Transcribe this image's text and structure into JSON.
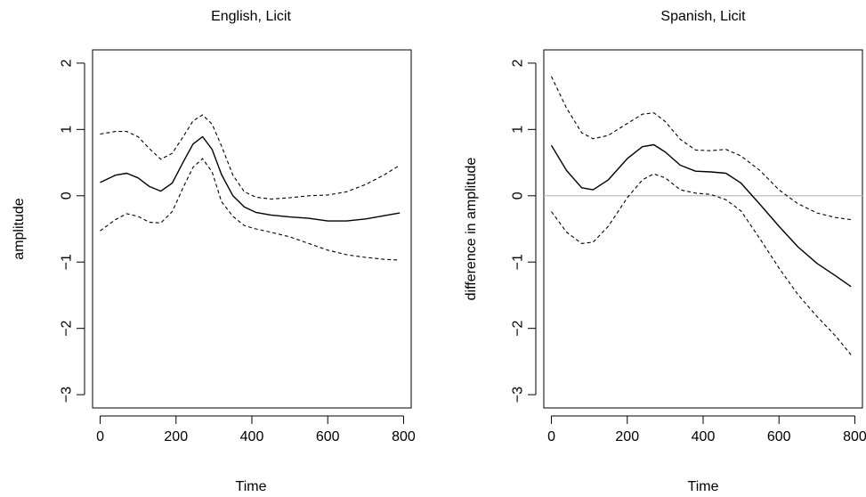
{
  "colors": {
    "fit": "#000000",
    "band": "#000000",
    "reference_line": "#bebebe",
    "background": "#ffffff"
  },
  "chart_data": [
    {
      "type": "line",
      "title": "English, Licit",
      "xlabel": "Time",
      "ylabel": "amplitude",
      "xlim": [
        -20,
        820
      ],
      "ylim": [
        -3.2,
        2.2
      ],
      "xticks": [
        0,
        200,
        400,
        600,
        800
      ],
      "xtick_labels": [
        "0",
        "200",
        "400",
        "600",
        "800"
      ],
      "yticks": [
        -3,
        -2,
        -1,
        0,
        1,
        2
      ],
      "ytick_labels": [
        "−3",
        "−2",
        "−1",
        "0",
        "1",
        "2"
      ],
      "grid": false,
      "legend": "none",
      "reference_line": null,
      "x": [
        0,
        40,
        70,
        100,
        130,
        160,
        190,
        220,
        245,
        270,
        295,
        320,
        350,
        380,
        410,
        450,
        500,
        550,
        600,
        650,
        700,
        750,
        790
      ],
      "series": [
        {
          "role": "fit",
          "style": "solid",
          "values": [
            0.2,
            0.31,
            0.34,
            0.27,
            0.14,
            0.07,
            0.19,
            0.52,
            0.78,
            0.89,
            0.7,
            0.32,
            0.0,
            -0.17,
            -0.25,
            -0.29,
            -0.32,
            -0.34,
            -0.38,
            -0.38,
            -0.35,
            -0.3,
            -0.26
          ]
        },
        {
          "role": "upper_ci",
          "style": "dashed",
          "values": [
            0.93,
            0.97,
            0.97,
            0.89,
            0.71,
            0.55,
            0.64,
            0.9,
            1.13,
            1.22,
            1.08,
            0.75,
            0.31,
            0.06,
            -0.02,
            -0.05,
            -0.03,
            0.0,
            0.01,
            0.06,
            0.17,
            0.32,
            0.46
          ]
        },
        {
          "role": "lower_ci",
          "style": "dashed",
          "values": [
            -0.53,
            -0.36,
            -0.27,
            -0.31,
            -0.4,
            -0.41,
            -0.24,
            0.14,
            0.43,
            0.56,
            0.36,
            -0.09,
            -0.31,
            -0.45,
            -0.5,
            -0.55,
            -0.62,
            -0.72,
            -0.82,
            -0.89,
            -0.93,
            -0.96,
            -0.97
          ]
        }
      ]
    },
    {
      "type": "line",
      "title": "Spanish, Licit",
      "xlabel": "Time",
      "ylabel": "difference in amplitude",
      "xlim": [
        -20,
        820
      ],
      "ylim": [
        -3.2,
        2.2
      ],
      "xticks": [
        0,
        200,
        400,
        600,
        800
      ],
      "xtick_labels": [
        "0",
        "200",
        "400",
        "600",
        "800"
      ],
      "yticks": [
        -3,
        -2,
        -1,
        0,
        1,
        2
      ],
      "ytick_labels": [
        "−3",
        "−2",
        "−1",
        "0",
        "1",
        "2"
      ],
      "grid": false,
      "legend": "none",
      "reference_line": 0,
      "x": [
        0,
        40,
        80,
        110,
        150,
        200,
        240,
        270,
        300,
        340,
        380,
        420,
        460,
        500,
        550,
        600,
        650,
        700,
        750,
        790
      ],
      "series": [
        {
          "role": "fit",
          "style": "solid",
          "values": [
            0.76,
            0.38,
            0.12,
            0.09,
            0.24,
            0.56,
            0.74,
            0.77,
            0.66,
            0.46,
            0.37,
            0.36,
            0.34,
            0.19,
            -0.13,
            -0.46,
            -0.77,
            -1.02,
            -1.21,
            -1.37
          ]
        },
        {
          "role": "upper_ci",
          "style": "dashed",
          "values": [
            1.8,
            1.32,
            0.95,
            0.86,
            0.91,
            1.09,
            1.23,
            1.25,
            1.12,
            0.85,
            0.69,
            0.68,
            0.7,
            0.6,
            0.38,
            0.09,
            -0.12,
            -0.26,
            -0.33,
            -0.36
          ]
        },
        {
          "role": "lower_ci",
          "style": "dashed",
          "values": [
            -0.24,
            -0.55,
            -0.72,
            -0.7,
            -0.46,
            -0.03,
            0.24,
            0.33,
            0.27,
            0.09,
            0.04,
            0.02,
            -0.06,
            -0.23,
            -0.65,
            -1.09,
            -1.49,
            -1.82,
            -2.12,
            -2.4
          ]
        }
      ]
    }
  ]
}
